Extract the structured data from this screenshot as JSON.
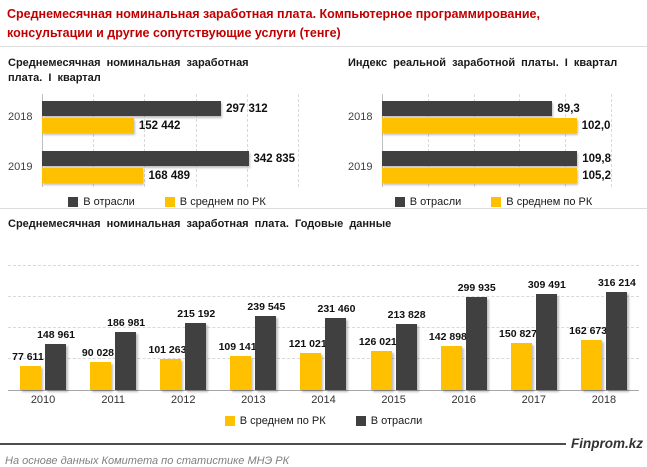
{
  "header": {
    "title_line1": "Среднемесячная номинальная заработная плата. Компьютерное программирование,",
    "title_line2": "консультации и другие сопутствующие услуги (тенге)",
    "title_color": "#C00000"
  },
  "colors": {
    "industry": "#404040",
    "rk_average": "#FFC000",
    "gridline": "#D9D9D9"
  },
  "chart_data": [
    {
      "id": "quarterly_salary",
      "type": "bar-horizontal",
      "title": "Среднемесячная  номинальная  заработная плата. I квартал",
      "categories": [
        "2018",
        "2019"
      ],
      "series": [
        {
          "key": "industry",
          "name": "В отрасли",
          "color": "#404040",
          "values": [
            297312,
            342835
          ],
          "labels": [
            "297 312",
            "342 835"
          ]
        },
        {
          "key": "rk-average",
          "name": "В среднем  по РК",
          "color": "#FFC000",
          "values": [
            152442,
            168489
          ],
          "labels": [
            "152 442",
            "168 489"
          ]
        }
      ],
      "axis_max": 425000,
      "grid": "vertical-dashed",
      "legend_position": "bottom"
    },
    {
      "id": "real_wage_index",
      "type": "bar-horizontal",
      "title": "Индекс  реальной  заработной  платы. I квартал",
      "categories": [
        "2018",
        "2019"
      ],
      "series": [
        {
          "key": "industry",
          "name": "В отрасли",
          "color": "#404040",
          "values": [
            89.3,
            109.8
          ],
          "labels": [
            "89,3",
            "109,8"
          ]
        },
        {
          "key": "rk-average",
          "name": "В среднем  по РК",
          "color": "#FFC000",
          "values": [
            102.0,
            105.2
          ],
          "labels": [
            "102,0",
            "105,2"
          ]
        }
      ],
      "axis_max": 120,
      "grid": "vertical-dashed",
      "legend_position": "bottom"
    },
    {
      "id": "annual_salary",
      "type": "bar",
      "title": "Среднемесячная  номинальная  заработная  плата.  Годовые  данные",
      "categories": [
        "2010",
        "2011",
        "2012",
        "2013",
        "2014",
        "2015",
        "2016",
        "2017",
        "2018"
      ],
      "series": [
        {
          "key": "rk-average",
          "name": "В среднем  по РК",
          "color": "#FFC000",
          "values": [
            77611,
            90028,
            101263,
            109141,
            121021,
            126021,
            142898,
            150827,
            162673
          ],
          "labels": [
            "77 611",
            "90 028",
            "101 263",
            "109 141",
            "121 021",
            "126 021",
            "142 898",
            "150 827",
            "162 673"
          ]
        },
        {
          "key": "industry",
          "name": "В отрасли",
          "color": "#404040",
          "values": [
            148961,
            186981,
            215192,
            239545,
            231460,
            213828,
            299935,
            309491,
            316214
          ],
          "labels": [
            "148 961",
            "186 981",
            "215 192",
            "239 545",
            "231 460",
            "213 828",
            "299 935",
            "309 491",
            "316 214"
          ]
        }
      ],
      "axis_max": 430000,
      "gridlines": [
        100000,
        200000,
        300000,
        400000
      ],
      "grid": "horizontal-dashed",
      "legend_position": "bottom"
    }
  ],
  "footer": {
    "source": "На основе данных  Комитета по статистике МНЭ РК",
    "brand": "Finprom.kz"
  }
}
